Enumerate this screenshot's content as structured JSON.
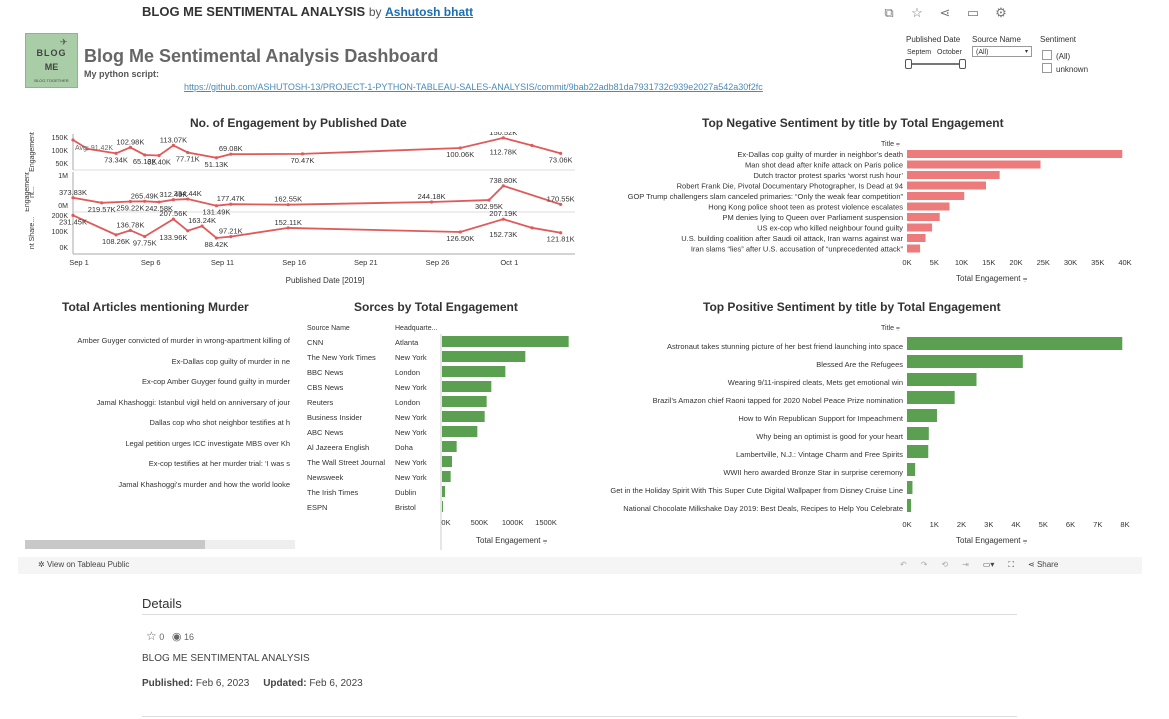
{
  "header": {
    "viz_title": "BLOG ME SENTIMENTAL ANALYSIS",
    "by": "by",
    "author": "Ashutosh bhatt",
    "icons": [
      "copy-icon",
      "star-icon",
      "share-icon",
      "comment-icon",
      "settings-icon"
    ]
  },
  "logo": {
    "line1": "BLOG",
    "line2": "ME",
    "line3": "BLOG TOGETHER"
  },
  "dashboard": {
    "title": "Blog Me Sentimental Analysis Dashboard",
    "script_label": "My python script:",
    "script_link": "https://github.com/ASHUTOSH-13/PROJECT-1-PYTHON-TABLEAU-SALES-ANALYSIS/commit/9bab22adb81da7931732c939e2027a542a30f2fc"
  },
  "filters": {
    "published_date": {
      "label": "Published Date",
      "from": "Septem",
      "to": "October"
    },
    "source_name": {
      "label": "Source Name",
      "value": "(All)"
    },
    "sentiment": {
      "label": "Sentiment",
      "options": [
        "(All)",
        "unknown"
      ]
    }
  },
  "engagement_chart": {
    "title": "No. of Engagement by Published Date",
    "x_label": "Published Date [2019]",
    "x_ticks": [
      "Sep 1",
      "Sep 6",
      "Sep 11",
      "Sep 16",
      "Sep 21",
      "Sep 26",
      "Oct 1"
    ],
    "y_label": "Engagement",
    "avg_label": "Avg: 91.42K",
    "panes": [
      {
        "name": "Total",
        "y_label": "Engagement",
        "ticks": [
          "150K",
          "100K",
          "50K"
        ],
        "y_range": [
          0,
          160000
        ],
        "points": [
          [
            1,
            140000
          ],
          [
            2,
            96000
          ],
          [
            4,
            73340
          ],
          [
            5,
            102980
          ],
          [
            6,
            65130
          ],
          [
            7,
            62400
          ],
          [
            8,
            113070
          ],
          [
            9,
            77710
          ],
          [
            11,
            51130
          ],
          [
            12,
            69080
          ],
          [
            17,
            70470
          ],
          [
            28,
            100060
          ],
          [
            31,
            150520
          ],
          [
            33,
            112780
          ],
          [
            35,
            73060
          ]
        ],
        "labels": [
          {
            "t": "73.34K",
            "x": 4,
            "y": 73340,
            "pos": "below"
          },
          {
            "t": "102.98K",
            "x": 5,
            "y": 102980,
            "pos": "above"
          },
          {
            "t": "65.13K",
            "x": 6,
            "y": 65130,
            "pos": "below"
          },
          {
            "t": "62.40K",
            "x": 7,
            "y": 62400,
            "pos": "below"
          },
          {
            "t": "113.07K",
            "x": 8,
            "y": 113070,
            "pos": "above"
          },
          {
            "t": "77.71K",
            "x": 9,
            "y": 77710,
            "pos": "below"
          },
          {
            "t": "51.13K",
            "x": 11,
            "y": 51130,
            "pos": "below"
          },
          {
            "t": "69.08K",
            "x": 12,
            "y": 69080,
            "pos": "above"
          },
          {
            "t": "70.47K",
            "x": 17,
            "y": 70470,
            "pos": "below"
          },
          {
            "t": "100.06K",
            "x": 28,
            "y": 100060,
            "pos": "below"
          },
          {
            "t": "150.52K",
            "x": 31,
            "y": 150520,
            "pos": "above"
          },
          {
            "t": "112.78K",
            "x": 31,
            "y": 112780,
            "pos": "below"
          },
          {
            "t": "73.06K",
            "x": 35,
            "y": 73060,
            "pos": "below"
          }
        ]
      },
      {
        "name": "Comment",
        "y_label": "nt...",
        "ticks": [
          "1M",
          "0M"
        ],
        "y_range": [
          0,
          1100000
        ],
        "points": [
          [
            1,
            373830
          ],
          [
            3,
            219570
          ],
          [
            5,
            259220
          ],
          [
            6,
            265490
          ],
          [
            7,
            242580
          ],
          [
            8,
            312490
          ],
          [
            9,
            334440
          ],
          [
            11,
            131490
          ],
          [
            12,
            177470
          ],
          [
            16,
            162550
          ],
          [
            26,
            244180
          ],
          [
            30,
            302950
          ],
          [
            31,
            738800
          ],
          [
            35,
            170550
          ]
        ],
        "labels": [
          {
            "t": "373.83K",
            "x": 1,
            "y": 373830,
            "pos": "above"
          },
          {
            "t": "219.57K",
            "x": 3,
            "y": 219570,
            "pos": "below"
          },
          {
            "t": "259.22K",
            "x": 5,
            "y": 259220,
            "pos": "below"
          },
          {
            "t": "265.49K",
            "x": 6,
            "y": 265490,
            "pos": "above"
          },
          {
            "t": "242.58K",
            "x": 7,
            "y": 242580,
            "pos": "below"
          },
          {
            "t": "312.49K",
            "x": 8,
            "y": 312490,
            "pos": "above"
          },
          {
            "t": "334.44K",
            "x": 9,
            "y": 334440,
            "pos": "above"
          },
          {
            "t": "131.49K",
            "x": 11,
            "y": 131490,
            "pos": "below"
          },
          {
            "t": "177.47K",
            "x": 12,
            "y": 177470,
            "pos": "above"
          },
          {
            "t": "162.55K",
            "x": 16,
            "y": 162550,
            "pos": "above"
          },
          {
            "t": "244.18K",
            "x": 26,
            "y": 244180,
            "pos": "above"
          },
          {
            "t": "302.95K",
            "x": 30,
            "y": 302950,
            "pos": "below"
          },
          {
            "t": "738.80K",
            "x": 31,
            "y": 738800,
            "pos": "above"
          },
          {
            "t": "170.55K",
            "x": 35,
            "y": 170550,
            "pos": "above"
          }
        ]
      },
      {
        "name": "Share",
        "y_label": "nt Share...",
        "ticks": [
          "200K",
          "100K",
          "0K"
        ],
        "y_range": [
          0,
          240000
        ],
        "points": [
          [
            1,
            231450
          ],
          [
            4,
            108260
          ],
          [
            5,
            136780
          ],
          [
            6,
            97750
          ],
          [
            8,
            207560
          ],
          [
            9,
            133960
          ],
          [
            10,
            163240
          ],
          [
            11,
            88420
          ],
          [
            12,
            97210
          ],
          [
            16,
            152110
          ],
          [
            28,
            126500
          ],
          [
            31,
            207190
          ],
          [
            33,
            152730
          ],
          [
            35,
            121810
          ]
        ],
        "labels": [
          {
            "t": "231.45K",
            "x": 1,
            "y": 231450,
            "pos": "below"
          },
          {
            "t": "108.26K",
            "x": 4,
            "y": 108260,
            "pos": "below"
          },
          {
            "t": "136.78K",
            "x": 5,
            "y": 136780,
            "pos": "above"
          },
          {
            "t": "97.75K",
            "x": 6,
            "y": 97750,
            "pos": "below"
          },
          {
            "t": "207.56K",
            "x": 8,
            "y": 207560,
            "pos": "above"
          },
          {
            "t": "133.96K",
            "x": 8,
            "y": 133960,
            "pos": "below"
          },
          {
            "t": "163.24K",
            "x": 10,
            "y": 163240,
            "pos": "above"
          },
          {
            "t": "88.42K",
            "x": 11,
            "y": 88420,
            "pos": "below"
          },
          {
            "t": "97.21K",
            "x": 12,
            "y": 97210,
            "pos": "above"
          },
          {
            "t": "152.11K",
            "x": 16,
            "y": 152110,
            "pos": "above"
          },
          {
            "t": "126.50K",
            "x": 28,
            "y": 126500,
            "pos": "below"
          },
          {
            "t": "207.19K",
            "x": 31,
            "y": 207190,
            "pos": "above"
          },
          {
            "t": "152.73K",
            "x": 31,
            "y": 152730,
            "pos": "below"
          },
          {
            "t": "121.81K",
            "x": 35,
            "y": 121810,
            "pos": "below"
          }
        ]
      }
    ],
    "color": "#e05a5a"
  },
  "negative_chart": {
    "title": "Top Negative Sentiment by title by Total Engagement",
    "col_label": "Title",
    "x_label": "Total Engagement",
    "x_ticks": [
      "0K",
      "5K",
      "10K",
      "15K",
      "20K",
      "25K",
      "30K",
      "35K",
      "40K"
    ],
    "x_max": 40000,
    "color": "#ee7b7b",
    "items": [
      {
        "title": "Ex-Dallas cop guilty of murder in neighbor’s death",
        "value": 39500
      },
      {
        "title": "Man shot dead after knife attack on Paris police",
        "value": 24500
      },
      {
        "title": "Dutch tractor protest sparks ‘worst rush hour’",
        "value": 17000
      },
      {
        "title": "Robert Frank Die, Pivotal Documentary Photographer, Is Dead at 94",
        "value": 14500
      },
      {
        "title": "GOP Trump challengers slam canceled primaries: “Only the weak fear competition”",
        "value": 10500
      },
      {
        "title": "Hong Kong police shoot teen as protest violence escalates",
        "value": 7800
      },
      {
        "title": "PM denies lying to Queen over Parliament suspension",
        "value": 6000
      },
      {
        "title": "US ex-cop who killed neighbour found guilty",
        "value": 4600
      },
      {
        "title": "U.S. building coalition after Saudi oil attack, Iran warns against war",
        "value": 3400
      },
      {
        "title": "Iran slams “lies” after U.S. accusation of “unprecedented attack”",
        "value": 2400
      }
    ]
  },
  "murder_list": {
    "title": "Total Articles mentioning Murder",
    "items": [
      "Amber Guyger convicted of murder in wrong-apartment killing of",
      "Ex-Dallas cop guilty of murder in ne",
      "Ex-cop Amber Guyger found guilty in murder",
      "Jamal Khashoggi: Istanbul vigil held on anniversary of jour",
      "Dallas cop who shot neighbor testifies at h",
      "Legal petition urges ICC investigate MBS over Kh",
      "Ex-cop testifies at her murder trial: ‘I was s",
      "Jamal Khashoggi’s murder and how the world looke"
    ]
  },
  "sources_chart": {
    "title": "Sorces by  Total Engagement",
    "col_source": "Source Name",
    "col_hq": "Headquarte...",
    "x_label": "Total Engagement",
    "x_ticks": [
      "0K",
      "500K",
      "1000K",
      "1500K"
    ],
    "x_max": 1950000,
    "color": "#5aa050",
    "items": [
      {
        "source": "CNN",
        "hq": "Atlanta",
        "value": 1900000
      },
      {
        "source": "The New York Times",
        "hq": "New York",
        "value": 1250000
      },
      {
        "source": "BBC News",
        "hq": "London",
        "value": 950000
      },
      {
        "source": "CBS News",
        "hq": "New York",
        "value": 740000
      },
      {
        "source": "Reuters",
        "hq": "London",
        "value": 670000
      },
      {
        "source": "Business Insider",
        "hq": "New York",
        "value": 640000
      },
      {
        "source": "ABC News",
        "hq": "New York",
        "value": 530000
      },
      {
        "source": "Al Jazeera English",
        "hq": "Doha",
        "value": 220000
      },
      {
        "source": "The Wall Street Journal",
        "hq": "New York",
        "value": 150000
      },
      {
        "source": "Newsweek",
        "hq": "New York",
        "value": 130000
      },
      {
        "source": "The Irish Times",
        "hq": "Dublin",
        "value": 45000
      },
      {
        "source": "ESPN",
        "hq": "Bristol",
        "value": 5000
      }
    ]
  },
  "positive_chart": {
    "title": "Top Positive Sentiment by title by Total Engagement",
    "col_label": "Title",
    "x_label": "Total Engagement",
    "x_ticks": [
      "0K",
      "1K",
      "2K",
      "3K",
      "4K",
      "5K",
      "6K",
      "7K",
      "8K"
    ],
    "x_max": 8000,
    "color": "#5aa050",
    "items": [
      {
        "title": "Astronaut takes stunning picture of her best friend launching into space",
        "value": 7900
      },
      {
        "title": "Blessed Are the Refugees",
        "value": 4250
      },
      {
        "title": "Wearing 9/11-inspired cleats, Mets get emotional win",
        "value": 2550
      },
      {
        "title": "Brazil’s Amazon chief Raoni tapped for 2020 Nobel Peace Prize nomination",
        "value": 1750
      },
      {
        "title": "How to Win Republican Support for Impeachment",
        "value": 1100
      },
      {
        "title": "Why being an optimist is good for your heart",
        "value": 800
      },
      {
        "title": "Lambertville, N.J.: Vintage Charm and Free Spirits",
        "value": 780
      },
      {
        "title": "WWII hero awarded Bronze Star in surprise ceremony",
        "value": 300
      },
      {
        "title": "Get in the Holiday Spirit With This Super Cute Digital Wallpaper from Disney Cruise Line",
        "value": 200
      },
      {
        "title": "National Chocolate Milkshake Day 2019: Best Deals, Recipes to Help You Celebrate",
        "value": 150
      }
    ]
  },
  "toolbar": {
    "view_label": "View on Tableau Public",
    "share_label": "Share"
  },
  "details": {
    "title": "Details",
    "favorites": "0",
    "views": "16",
    "name": "BLOG ME SENTIMENTAL ANALYSIS",
    "published_label": "Published:",
    "published_value": "Feb 6, 2023",
    "updated_label": "Updated:",
    "updated_value": "Feb 6, 2023"
  }
}
